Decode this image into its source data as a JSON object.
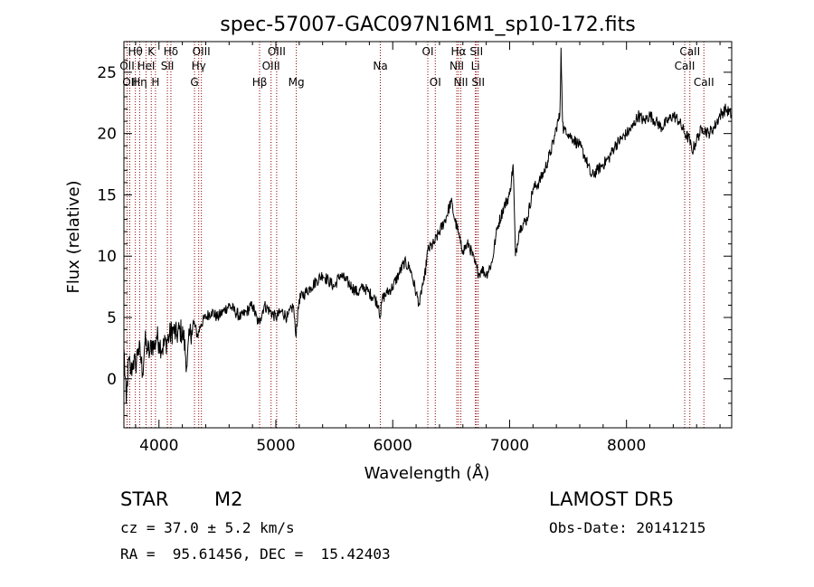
{
  "chart_data": {
    "type": "line",
    "title": "spec-57007-GAC097N16M1_sp10-172.fits",
    "xlabel": "Wavelength (Å)",
    "ylabel": "Flux (relative)",
    "xlim": [
      3700,
      8900
    ],
    "ylim": [
      -4,
      27.5
    ],
    "xticks": [
      4000,
      5000,
      6000,
      7000,
      8000
    ],
    "yticks": [
      0,
      5,
      10,
      15,
      20,
      25
    ],
    "grid": false,
    "series": [
      {
        "x": [
          3700,
          3720,
          3740,
          3760,
          3780,
          3800,
          3820,
          3840,
          3860,
          3880,
          3900,
          3920,
          3940,
          3960,
          3980,
          4000,
          4030,
          4060,
          4090,
          4120,
          4150,
          4180,
          4210,
          4240,
          4260,
          4280,
          4300,
          4330,
          4360,
          4400,
          4450,
          4500,
          4550,
          4600,
          4650,
          4700,
          4750,
          4800,
          4850,
          4870,
          4900,
          4950,
          5000,
          5050,
          5100,
          5150,
          5170,
          5200,
          5250,
          5300,
          5350,
          5400,
          5450,
          5500,
          5550,
          5600,
          5650,
          5700,
          5750,
          5800,
          5850,
          5880,
          5893,
          5910,
          5950,
          6000,
          6050,
          6100,
          6150,
          6200,
          6230,
          6250,
          6270,
          6300,
          6350,
          6400,
          6450,
          6500,
          6530,
          6560,
          6580,
          6600,
          6650,
          6700,
          6720,
          6740,
          6760,
          6800,
          6850,
          6880,
          6900,
          6950,
          7000,
          7030,
          7050,
          7080,
          7100,
          7150,
          7200,
          7250,
          7300,
          7350,
          7380,
          7400,
          7430,
          7440,
          7450,
          7460,
          7480,
          7500,
          7550,
          7600,
          7650,
          7700,
          7750,
          7800,
          7850,
          7900,
          7950,
          8000,
          8050,
          8100,
          8150,
          8200,
          8250,
          8300,
          8350,
          8400,
          8450,
          8500,
          8540,
          8560,
          8600,
          8650,
          8700,
          8750,
          8800,
          8850,
          8900
        ],
        "y": [
          2.5,
          -2.0,
          1.5,
          0.5,
          1.5,
          1.0,
          2.5,
          2.0,
          0.5,
          3.0,
          2.5,
          2.0,
          3.0,
          2.5,
          3.5,
          3.0,
          2.5,
          3.0,
          3.5,
          4.0,
          3.5,
          4.0,
          3.5,
          1.0,
          3.5,
          4.0,
          4.5,
          3.5,
          4.5,
          5.0,
          5.5,
          5.0,
          5.5,
          6.0,
          5.5,
          5.0,
          5.5,
          6.0,
          4.5,
          5.0,
          6.0,
          5.5,
          5.0,
          5.5,
          5.0,
          6.0,
          3.5,
          6.5,
          7.0,
          7.5,
          8.0,
          8.5,
          8.0,
          7.5,
          8.5,
          8.0,
          7.5,
          7.0,
          7.5,
          7.0,
          6.5,
          6.0,
          5.0,
          6.5,
          7.0,
          7.5,
          8.5,
          9.5,
          9.0,
          7.0,
          6.0,
          7.5,
          8.0,
          10.5,
          11.0,
          12.0,
          13.0,
          14.5,
          13.0,
          12.0,
          11.0,
          10.5,
          11.0,
          9.5,
          9.0,
          8.5,
          9.0,
          8.5,
          9.5,
          11.5,
          12.5,
          14.0,
          15.0,
          17.5,
          10.0,
          12.0,
          12.5,
          13.0,
          15.5,
          16.0,
          17.0,
          18.5,
          19.5,
          20.5,
          21.5,
          27.0,
          22.0,
          20.0,
          20.5,
          20.0,
          19.5,
          19.0,
          18.0,
          16.5,
          17.0,
          17.5,
          18.0,
          19.0,
          19.5,
          20.0,
          20.5,
          21.5,
          21.0,
          21.5,
          21.0,
          20.5,
          21.0,
          21.5,
          21.0,
          20.0,
          19.5,
          18.5,
          19.5,
          20.5,
          20.0,
          20.5,
          21.5,
          22.0,
          21.5
        ]
      }
    ],
    "lines": [
      {
        "wl": 3727,
        "label": "OII",
        "row": 2
      },
      {
        "wl": 3750,
        "label": "OII",
        "row": 3
      },
      {
        "wl": 3798,
        "label": "Hθ",
        "row": 1
      },
      {
        "wl": 3835,
        "label": "Hη",
        "row": 3
      },
      {
        "wl": 3889,
        "label": "HeI",
        "row": 2
      },
      {
        "wl": 3934,
        "label": "K",
        "row": 1
      },
      {
        "wl": 3970,
        "label": "H",
        "row": 3
      },
      {
        "wl": 4072,
        "label": "SII",
        "row": 2
      },
      {
        "wl": 4102,
        "label": "Hδ",
        "row": 1
      },
      {
        "wl": 4304,
        "label": "G",
        "row": 3
      },
      {
        "wl": 4340,
        "label": "Hγ",
        "row": 2
      },
      {
        "wl": 4363,
        "label": "OIII",
        "row": 1
      },
      {
        "wl": 4861,
        "label": "Hβ",
        "row": 3
      },
      {
        "wl": 4959,
        "label": "OIII",
        "row": 2
      },
      {
        "wl": 5007,
        "label": "OIII",
        "row": 1
      },
      {
        "wl": 5175,
        "label": "Mg",
        "row": 3
      },
      {
        "wl": 5894,
        "label": "Na",
        "row": 2
      },
      {
        "wl": 6300,
        "label": "OI",
        "row": 1
      },
      {
        "wl": 6364,
        "label": "OI",
        "row": 3
      },
      {
        "wl": 6548,
        "label": "NII",
        "row": 2
      },
      {
        "wl": 6563,
        "label": "Hα",
        "row": 1
      },
      {
        "wl": 6583,
        "label": "NII",
        "row": 3
      },
      {
        "wl": 6707,
        "label": "Li",
        "row": 2
      },
      {
        "wl": 6716,
        "label": "SII",
        "row": 1
      },
      {
        "wl": 6731,
        "label": "SII",
        "row": 3
      },
      {
        "wl": 8498,
        "label": "CaII",
        "row": 2
      },
      {
        "wl": 8542,
        "label": "CaII",
        "row": 1
      },
      {
        "wl": 8662,
        "label": "CaII",
        "row": 3
      }
    ]
  },
  "info": {
    "object_class": "STAR",
    "subclass": "M2",
    "survey": "LAMOST DR5",
    "redshift": "cz = 37.0 ± 5.2 km/s",
    "obs_date": "Obs-Date: 20141215",
    "coords": "RA =  95.61456, DEC =  15.42403"
  },
  "colors": {
    "axis": "#000000",
    "spectrum": "#000000",
    "lines": "#8b0000"
  }
}
